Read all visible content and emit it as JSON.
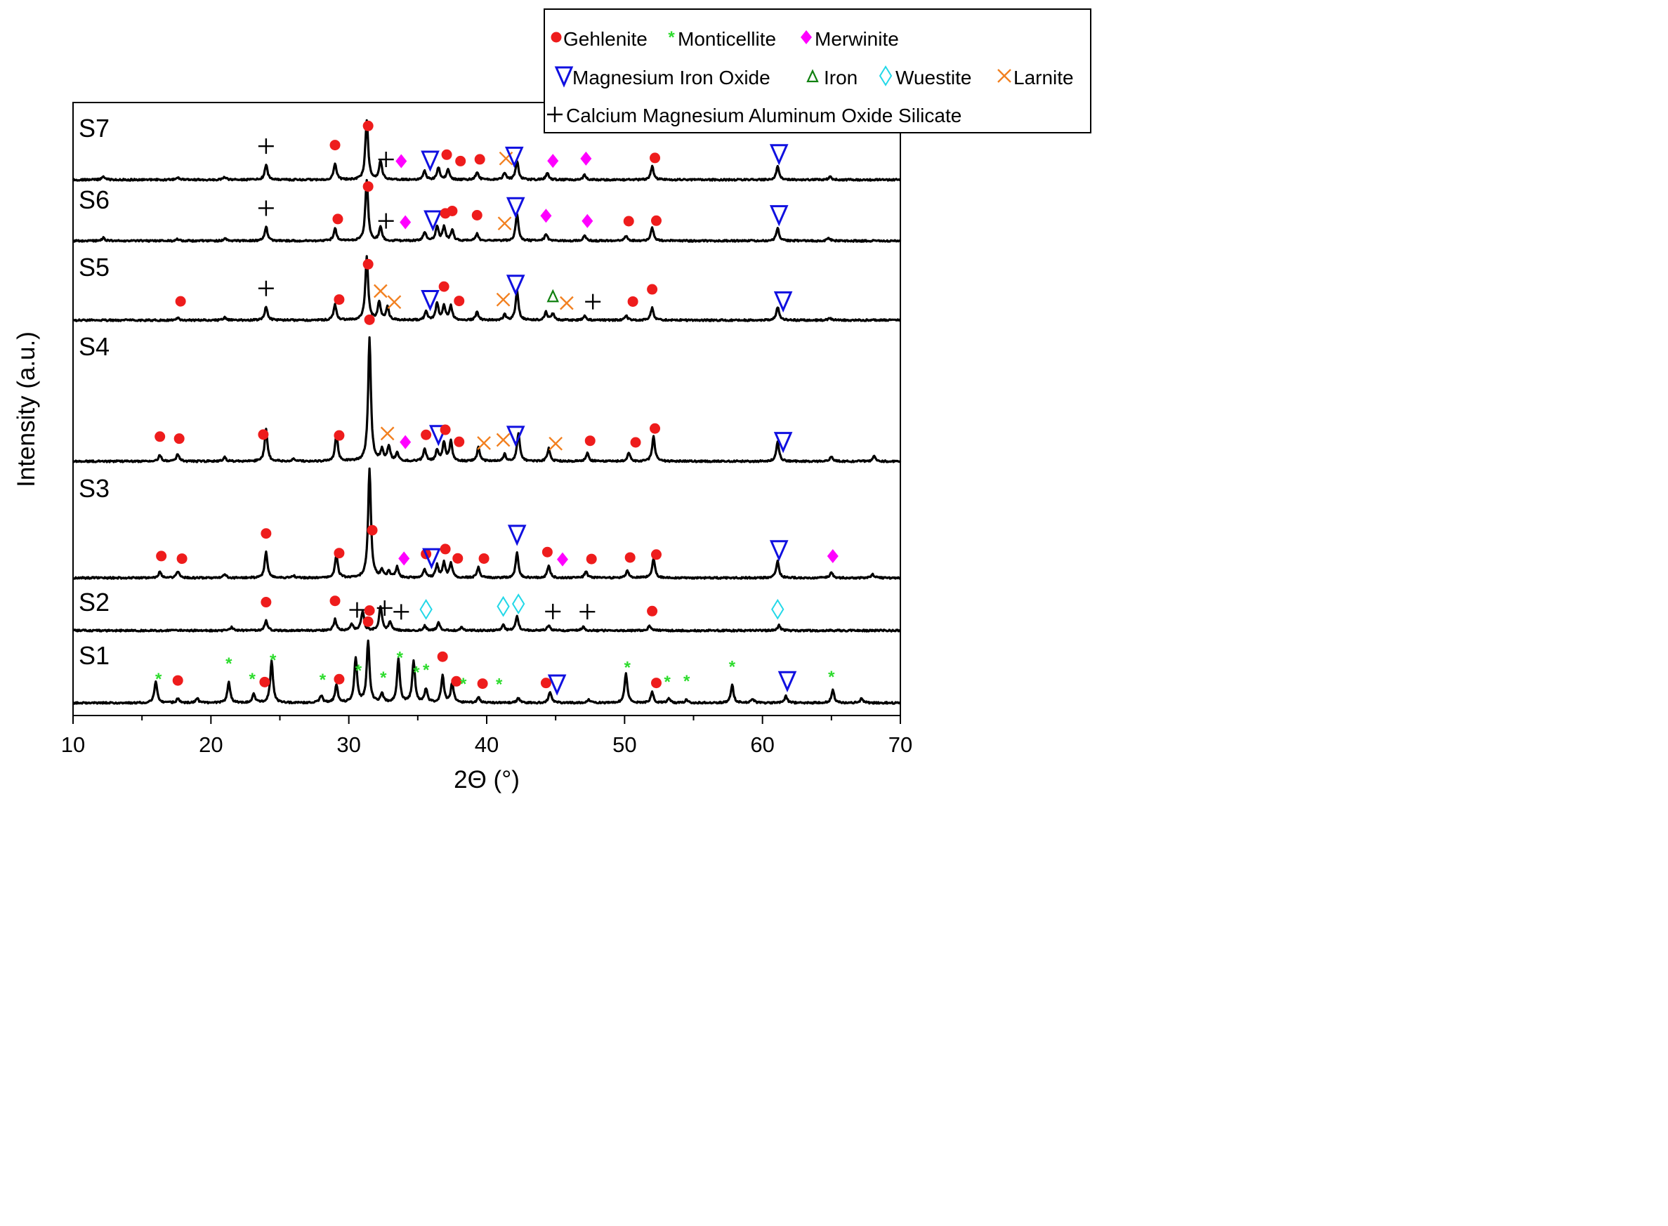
{
  "chart_data": {
    "type": "line",
    "title": "",
    "xlabel": "2Θ (°)",
    "ylabel": "Intensity (a.u.)",
    "xlim": [
      10,
      70
    ],
    "xticks": [
      10,
      20,
      30,
      40,
      50,
      60,
      70
    ],
    "grid": false,
    "legend_position": "top-right",
    "legend": [
      {
        "key": "gehlenite",
        "label": "Gehlenite",
        "marker": "circle",
        "color": "#ee1c1c"
      },
      {
        "key": "monticellite",
        "label": "Monticellite",
        "marker": "asterisk",
        "color": "#2ddc2d"
      },
      {
        "key": "merwinite",
        "label": "Merwinite",
        "marker": "diamond",
        "color": "#ff00ff"
      },
      {
        "key": "mgfeo",
        "label": "Magnesium Iron Oxide",
        "marker": "down-triangle",
        "color": "#1010e0"
      },
      {
        "key": "iron",
        "label": "Iron",
        "marker": "up-triangle",
        "color": "#108010"
      },
      {
        "key": "wuestite",
        "label": "Wuestite",
        "marker": "open-diamond",
        "color": "#22d8e8"
      },
      {
        "key": "larnite",
        "label": "Larnite",
        "marker": "x",
        "color": "#f28020"
      },
      {
        "key": "cmas",
        "label": "Calcium Magnesium Aluminum Oxide Silicate",
        "marker": "plus",
        "color": "#000000"
      }
    ],
    "series": [
      {
        "name": "S7",
        "peaks": [
          [
            12.2,
            0.7
          ],
          [
            17.6,
            0.4
          ],
          [
            21.0,
            0.6
          ],
          [
            24.0,
            3.2
          ],
          [
            29.0,
            3.4
          ],
          [
            31.3,
            12.5
          ],
          [
            32.3,
            4.0
          ],
          [
            35.5,
            1.8
          ],
          [
            36.5,
            2.6
          ],
          [
            37.2,
            2.2
          ],
          [
            39.3,
            1.6
          ],
          [
            41.3,
            1.4
          ],
          [
            42.2,
            4.0
          ],
          [
            44.4,
            1.4
          ],
          [
            47.1,
            1.0
          ],
          [
            52.0,
            2.8
          ],
          [
            61.1,
            2.8
          ],
          [
            64.9,
            0.6
          ]
        ],
        "markers": [
          [
            "cmas",
            24.0
          ],
          [
            "gehlenite",
            29.0
          ],
          [
            "gehlenite",
            31.4
          ],
          [
            "cmas",
            32.7
          ],
          [
            "merwinite",
            33.8
          ],
          [
            "mgfeo",
            35.9
          ],
          [
            "gehlenite",
            37.1
          ],
          [
            "gehlenite",
            38.1
          ],
          [
            "gehlenite",
            39.5
          ],
          [
            "larnite",
            41.4
          ],
          [
            "mgfeo",
            42.0
          ],
          [
            "merwinite",
            44.8
          ],
          [
            "merwinite",
            47.2
          ],
          [
            "gehlenite",
            52.2
          ],
          [
            "mgfeo",
            61.2
          ]
        ]
      },
      {
        "name": "S6",
        "peaks": [
          [
            12.2,
            0.7
          ],
          [
            17.6,
            0.4
          ],
          [
            21.0,
            0.6
          ],
          [
            24.0,
            3.2
          ],
          [
            29.0,
            2.8
          ],
          [
            31.3,
            13.5
          ],
          [
            32.3,
            3.0
          ],
          [
            35.5,
            2.0
          ],
          [
            36.4,
            3.2
          ],
          [
            36.9,
            3.0
          ],
          [
            37.5,
            2.4
          ],
          [
            39.3,
            1.6
          ],
          [
            42.2,
            6.0
          ],
          [
            44.3,
            1.5
          ],
          [
            47.1,
            1.3
          ],
          [
            50.1,
            1.1
          ],
          [
            52.0,
            3.0
          ],
          [
            61.1,
            3.0
          ],
          [
            64.8,
            0.6
          ]
        ],
        "markers": [
          [
            "cmas",
            24.0
          ],
          [
            "gehlenite",
            29.2
          ],
          [
            "gehlenite",
            31.4
          ],
          [
            "cmas",
            32.7
          ],
          [
            "merwinite",
            34.1
          ],
          [
            "mgfeo",
            36.1
          ],
          [
            "gehlenite",
            37.0
          ],
          [
            "gehlenite",
            37.5
          ],
          [
            "gehlenite",
            39.3
          ],
          [
            "larnite",
            41.3
          ],
          [
            "mgfeo",
            42.1
          ],
          [
            "merwinite",
            44.3
          ],
          [
            "merwinite",
            47.3
          ],
          [
            "gehlenite",
            50.3
          ],
          [
            "gehlenite",
            52.3
          ],
          [
            "mgfeo",
            61.2
          ]
        ]
      },
      {
        "name": "S5",
        "peaks": [
          [
            17.6,
            0.5
          ],
          [
            21.0,
            0.6
          ],
          [
            24.0,
            3.0
          ],
          [
            29.0,
            3.4
          ],
          [
            31.3,
            14.0
          ],
          [
            32.2,
            4.0
          ],
          [
            32.8,
            3.0
          ],
          [
            35.6,
            1.8
          ],
          [
            36.4,
            3.8
          ],
          [
            36.9,
            3.0
          ],
          [
            37.4,
            3.2
          ],
          [
            39.3,
            1.8
          ],
          [
            41.3,
            1.2
          ],
          [
            42.2,
            6.6
          ],
          [
            44.3,
            1.8
          ],
          [
            44.8,
            1.4
          ],
          [
            47.1,
            1.0
          ],
          [
            50.1,
            1.0
          ],
          [
            52.0,
            2.8
          ],
          [
            61.1,
            3.0
          ],
          [
            64.9,
            0.5
          ]
        ],
        "markers": [
          [
            "gehlenite",
            17.8
          ],
          [
            "cmas",
            24.0
          ],
          [
            "gehlenite",
            29.3
          ],
          [
            "gehlenite",
            31.4
          ],
          [
            "larnite",
            32.3
          ],
          [
            "larnite",
            33.3
          ],
          [
            "mgfeo",
            35.9
          ],
          [
            "gehlenite",
            36.9
          ],
          [
            "gehlenite",
            38.0
          ],
          [
            "larnite",
            41.2
          ],
          [
            "mgfeo",
            42.1
          ],
          [
            "iron",
            44.8
          ],
          [
            "larnite",
            45.8
          ],
          [
            "cmas",
            47.7
          ],
          [
            "gehlenite",
            50.6
          ],
          [
            "gehlenite",
            52.0
          ],
          [
            "mgfeo",
            61.5
          ]
        ]
      },
      {
        "name": "S4",
        "peaks": [
          [
            16.3,
            1.3
          ],
          [
            17.6,
            1.5
          ],
          [
            21.0,
            0.8
          ],
          [
            24.0,
            6.5
          ],
          [
            26.0,
            0.5
          ],
          [
            29.1,
            5.5
          ],
          [
            31.5,
            25.0
          ],
          [
            32.4,
            2.2
          ],
          [
            32.9,
            3.0
          ],
          [
            33.5,
            1.6
          ],
          [
            35.5,
            2.6
          ],
          [
            36.4,
            2.2
          ],
          [
            36.9,
            3.8
          ],
          [
            37.4,
            4.0
          ],
          [
            39.4,
            2.8
          ],
          [
            41.3,
            1.4
          ],
          [
            42.3,
            5.8
          ],
          [
            44.5,
            2.6
          ],
          [
            47.3,
            1.7
          ],
          [
            50.3,
            1.7
          ],
          [
            52.1,
            5.0
          ],
          [
            61.1,
            4.0
          ],
          [
            65.0,
            1.0
          ],
          [
            68.1,
            1.0
          ]
        ],
        "markers": [
          [
            "gehlenite",
            16.3
          ],
          [
            "gehlenite",
            17.7
          ],
          [
            "gehlenite",
            23.8
          ],
          [
            "gehlenite",
            29.3
          ],
          [
            "gehlenite",
            31.5
          ],
          [
            "larnite",
            32.8
          ],
          [
            "merwinite",
            34.1
          ],
          [
            "gehlenite",
            35.6
          ],
          [
            "mgfeo",
            36.5
          ],
          [
            "gehlenite",
            37.0
          ],
          [
            "gehlenite",
            38.0
          ],
          [
            "larnite",
            39.8
          ],
          [
            "larnite",
            41.2
          ],
          [
            "mgfeo",
            42.1
          ],
          [
            "larnite",
            45.0
          ],
          [
            "gehlenite",
            47.5
          ],
          [
            "gehlenite",
            50.8
          ],
          [
            "gehlenite",
            52.2
          ],
          [
            "mgfeo",
            61.5
          ]
        ]
      },
      {
        "name": "S3",
        "peaks": [
          [
            16.3,
            1.4
          ],
          [
            17.6,
            1.6
          ],
          [
            21.0,
            0.9
          ],
          [
            24.0,
            6.2
          ],
          [
            26.0,
            0.5
          ],
          [
            29.1,
            5.5
          ],
          [
            31.5,
            26.0
          ],
          [
            32.4,
            1.8
          ],
          [
            32.9,
            1.4
          ],
          [
            33.5,
            2.6
          ],
          [
            35.5,
            2.0
          ],
          [
            36.4,
            3.0
          ],
          [
            36.9,
            3.5
          ],
          [
            37.4,
            3.5
          ],
          [
            39.4,
            2.5
          ],
          [
            42.2,
            6.0
          ],
          [
            44.5,
            3.0
          ],
          [
            47.2,
            1.6
          ],
          [
            50.2,
            1.8
          ],
          [
            52.1,
            4.5
          ],
          [
            61.1,
            4.0
          ],
          [
            65.0,
            1.4
          ],
          [
            68.0,
            0.8
          ]
        ],
        "markers": [
          [
            "gehlenite",
            16.4
          ],
          [
            "gehlenite",
            17.9
          ],
          [
            "gehlenite",
            24.0
          ],
          [
            "gehlenite",
            29.3
          ],
          [
            "gehlenite",
            31.7
          ],
          [
            "merwinite",
            34.0
          ],
          [
            "gehlenite",
            35.6
          ],
          [
            "mgfeo",
            36.0
          ],
          [
            "gehlenite",
            37.0
          ],
          [
            "gehlenite",
            37.9
          ],
          [
            "gehlenite",
            39.8
          ],
          [
            "mgfeo",
            42.2
          ],
          [
            "gehlenite",
            44.4
          ],
          [
            "merwinite",
            45.5
          ],
          [
            "gehlenite",
            47.6
          ],
          [
            "gehlenite",
            50.4
          ],
          [
            "gehlenite",
            52.3
          ],
          [
            "mgfeo",
            61.2
          ],
          [
            "merwinite",
            65.1
          ]
        ]
      },
      {
        "name": "S2",
        "peaks": [
          [
            21.5,
            0.6
          ],
          [
            24.0,
            1.8
          ],
          [
            29.0,
            2.0
          ],
          [
            30.2,
            1.2
          ],
          [
            31.0,
            3.5
          ],
          [
            32.3,
            4.3
          ],
          [
            33.0,
            1.6
          ],
          [
            35.5,
            0.8
          ],
          [
            36.5,
            1.4
          ],
          [
            38.2,
            0.6
          ],
          [
            41.2,
            1.0
          ],
          [
            42.2,
            2.5
          ],
          [
            44.5,
            0.9
          ],
          [
            47.0,
            0.7
          ],
          [
            51.8,
            0.8
          ],
          [
            61.2,
            0.9
          ]
        ],
        "markers": [
          [
            "gehlenite",
            24.0
          ],
          [
            "gehlenite",
            29.0
          ],
          [
            "cmas",
            30.6
          ],
          [
            "gehlenite",
            31.5
          ],
          [
            "cmas",
            32.6
          ],
          [
            "cmas",
            33.8
          ],
          [
            "wuestite",
            35.6
          ],
          [
            "wuestite",
            41.2
          ],
          [
            "wuestite",
            42.3
          ],
          [
            "cmas",
            44.8
          ],
          [
            "cmas",
            47.3
          ],
          [
            "gehlenite",
            52.0
          ],
          [
            "wuestite",
            61.1
          ]
        ]
      },
      {
        "name": "S1",
        "peaks": [
          [
            16.0,
            3.8
          ],
          [
            17.6,
            0.7
          ],
          [
            19.0,
            0.8
          ],
          [
            21.3,
            3.7
          ],
          [
            23.1,
            1.5
          ],
          [
            24.4,
            7.4
          ],
          [
            28.0,
            1.3
          ],
          [
            29.1,
            3.1
          ],
          [
            30.5,
            8.0
          ],
          [
            31.4,
            11.0
          ],
          [
            32.4,
            1.6
          ],
          [
            33.6,
            7.8
          ],
          [
            34.7,
            7.5
          ],
          [
            35.6,
            2.4
          ],
          [
            36.8,
            4.8
          ],
          [
            37.5,
            3.5
          ],
          [
            39.4,
            1.0
          ],
          [
            42.3,
            0.9
          ],
          [
            44.6,
            2.0
          ],
          [
            47.4,
            0.6
          ],
          [
            50.1,
            5.2
          ],
          [
            52.0,
            1.9
          ],
          [
            53.2,
            0.8
          ],
          [
            54.5,
            0.6
          ],
          [
            57.8,
            3.2
          ],
          [
            59.3,
            0.7
          ],
          [
            61.7,
            1.2
          ],
          [
            65.1,
            2.3
          ],
          [
            67.2,
            0.8
          ]
        ],
        "markers": [
          [
            "monticellite",
            16.2
          ],
          [
            "gehlenite",
            17.6
          ],
          [
            "monticellite",
            21.3
          ],
          [
            "monticellite",
            23.0
          ],
          [
            "gehlenite",
            23.9
          ],
          [
            "monticellite",
            24.5
          ],
          [
            "monticellite",
            28.1
          ],
          [
            "gehlenite",
            29.3
          ],
          [
            "monticellite",
            30.7
          ],
          [
            "gehlenite",
            31.4
          ],
          [
            "monticellite",
            32.5
          ],
          [
            "monticellite",
            33.7
          ],
          [
            "monticellite",
            34.9
          ],
          [
            "monticellite",
            35.6
          ],
          [
            "gehlenite",
            36.8
          ],
          [
            "gehlenite",
            37.8
          ],
          [
            "monticellite",
            38.3
          ],
          [
            "gehlenite",
            39.7
          ],
          [
            "monticellite",
            40.9
          ],
          [
            "gehlenite",
            44.3
          ],
          [
            "mgfeo",
            45.1
          ],
          [
            "monticellite",
            50.2
          ],
          [
            "gehlenite",
            52.3
          ],
          [
            "monticellite",
            53.1
          ],
          [
            "monticellite",
            54.5
          ],
          [
            "monticellite",
            57.8
          ],
          [
            "mgfeo",
            61.8
          ],
          [
            "monticellite",
            65.0
          ]
        ]
      }
    ]
  }
}
